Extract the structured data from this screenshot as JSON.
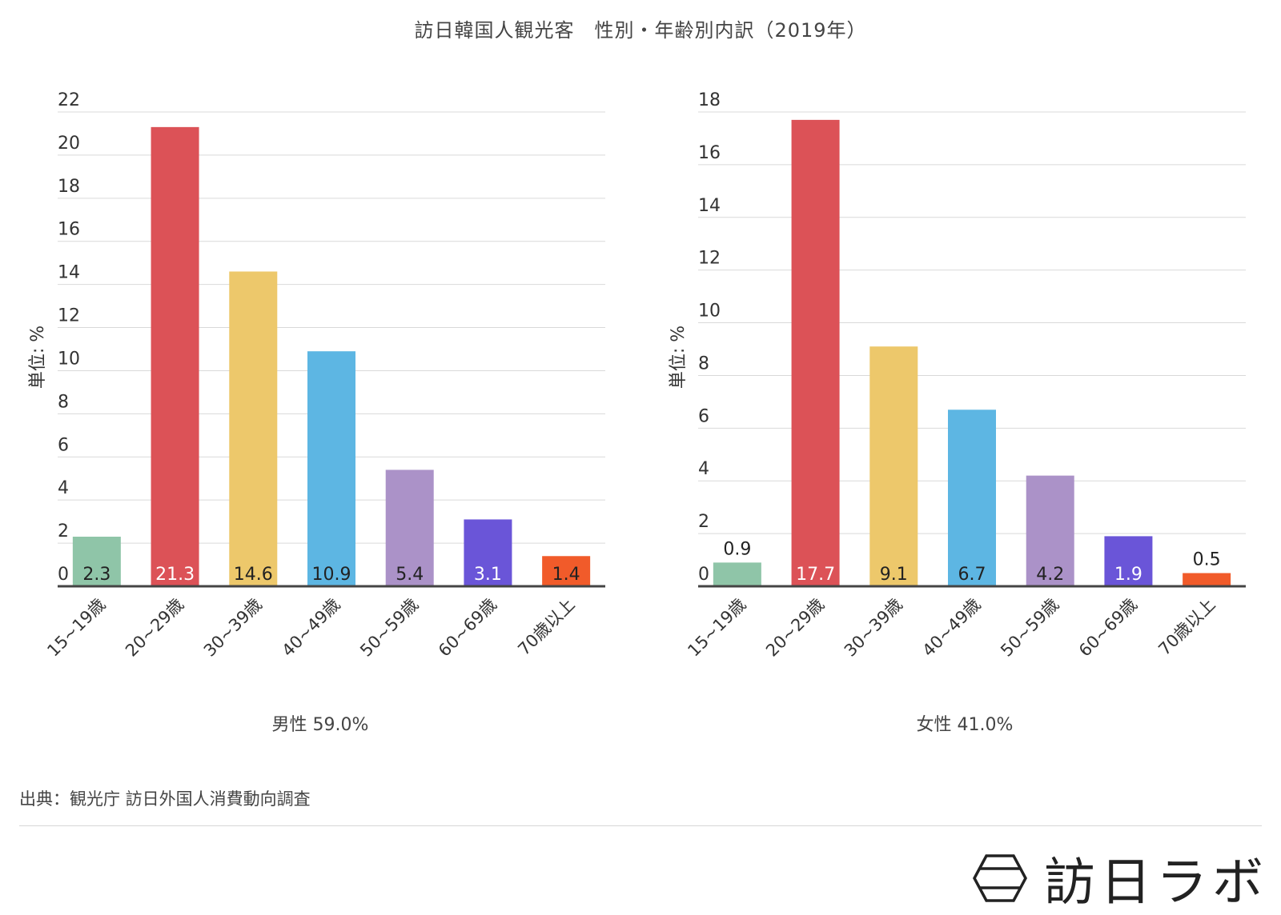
{
  "title": "訪日韓国人観光客　性別・年齢別内訳（2019年）",
  "source": "出典：観光庁 訪日外国人消費動向調査",
  "logo": {
    "text": "訪日ラボ",
    "icon": "hexagon-icon"
  },
  "colors": [
    "#8fc5a8",
    "#dc5257",
    "#edc86b",
    "#5db6e3",
    "#ab92c8",
    "#6a55d8",
    "#f15b2a"
  ],
  "chart_data": [
    {
      "type": "bar",
      "subtitle": "男性 59.0%",
      "ylabel": "単位: %",
      "ylim": [
        0,
        22
      ],
      "yticks": [
        0,
        2,
        4,
        6,
        8,
        10,
        12,
        14,
        16,
        18,
        20,
        22
      ],
      "categories": [
        "15~19歳",
        "20~29歳",
        "30~39歳",
        "40~49歳",
        "50~59歳",
        "60~69歳",
        "70歳以上"
      ],
      "values": [
        2.3,
        21.3,
        14.6,
        10.9,
        5.4,
        3.1,
        1.4
      ],
      "data_labels": [
        "2.3",
        "21.3",
        "14.6",
        "10.9",
        "5.4",
        "3.1",
        "1.4"
      ],
      "label_colors": [
        "#222222",
        "#ffffff",
        "#222222",
        "#222222",
        "#222222",
        "#ffffff",
        "#222222"
      ],
      "grid": true
    },
    {
      "type": "bar",
      "subtitle": "女性 41.0%",
      "ylabel": "単位: %",
      "ylim": [
        0,
        18
      ],
      "yticks": [
        0,
        2,
        4,
        6,
        8,
        10,
        12,
        14,
        16,
        18
      ],
      "categories": [
        "15~19歳",
        "20~29歳",
        "30~39歳",
        "40~49歳",
        "50~59歳",
        "60~69歳",
        "70歳以上"
      ],
      "values": [
        0.9,
        17.7,
        9.1,
        6.7,
        4.2,
        1.9,
        0.5
      ],
      "data_labels": [
        "0.9",
        "17.7",
        "9.1",
        "6.7",
        "4.2",
        "1.9",
        "0.5"
      ],
      "label_colors": [
        "#222222",
        "#ffffff",
        "#222222",
        "#222222",
        "#222222",
        "#ffffff",
        "#222222"
      ],
      "grid": true
    }
  ]
}
